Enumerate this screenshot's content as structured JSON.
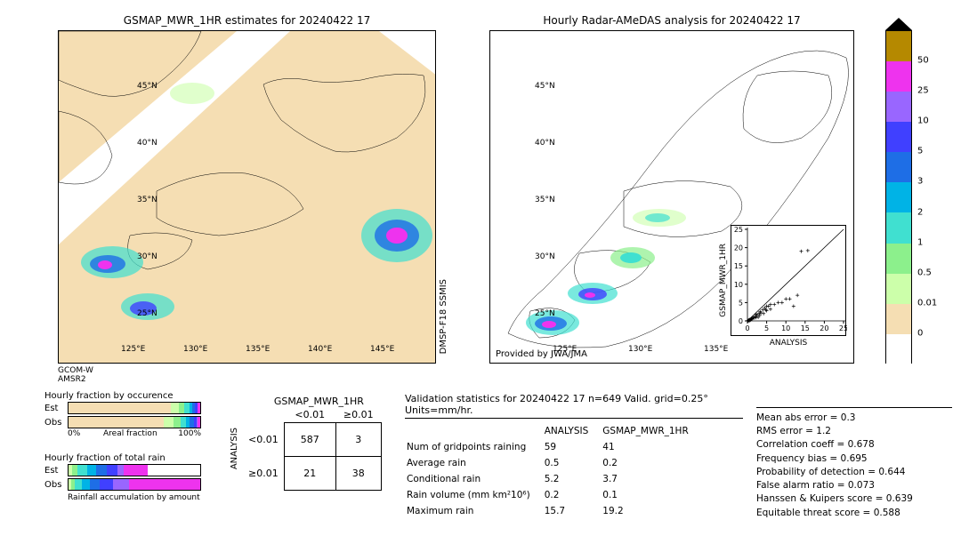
{
  "date": "20240422 17",
  "left_map": {
    "title": "GSMAP_MWR_1HR estimates for 20240422 17",
    "lon_ticks": [
      "125°E",
      "130°E",
      "135°E",
      "140°E",
      "145°E"
    ],
    "lat_ticks": [
      "25°N",
      "30°N",
      "35°N",
      "40°N",
      "45°N"
    ],
    "footer": "GCOM-W\nAMSR2",
    "swath_label": "DMSP-F18\nSSMIS"
  },
  "right_map": {
    "title": "Hourly Radar-AMeDAS analysis for 20240422 17",
    "lon_ticks": [
      "125°E",
      "130°E",
      "135°E"
    ],
    "lat_ticks": [
      "25°N",
      "30°N",
      "35°N",
      "40°N",
      "45°N"
    ],
    "provider": "Provided by JWA/JMA"
  },
  "scatter": {
    "xlabel": "ANALYSIS",
    "ylabel": "GSMAP_MWR_1HR",
    "xlim": [
      0,
      25
    ],
    "ylim": [
      0,
      25
    ],
    "ticks": [
      0,
      5,
      10,
      15,
      20,
      25
    ],
    "points": [
      [
        0.2,
        0.1
      ],
      [
        0.3,
        0.2
      ],
      [
        0.5,
        0.3
      ],
      [
        1,
        0.5
      ],
      [
        1.2,
        0.6
      ],
      [
        1.5,
        1
      ],
      [
        2,
        1.2
      ],
      [
        2.5,
        1.5
      ],
      [
        3,
        2
      ],
      [
        3.5,
        2.2
      ],
      [
        4,
        3
      ],
      [
        4.5,
        3.5
      ],
      [
        5,
        2.8
      ],
      [
        5.5,
        4
      ],
      [
        6,
        3.2
      ],
      [
        7,
        4.5
      ],
      [
        8,
        5
      ],
      [
        9,
        5
      ],
      [
        10,
        6
      ],
      [
        11,
        6
      ],
      [
        12,
        4
      ],
      [
        13,
        7
      ],
      [
        14,
        19
      ],
      [
        15.7,
        19.2
      ],
      [
        5,
        4
      ],
      [
        6,
        4.5
      ],
      [
        0.8,
        0.2
      ],
      [
        1.8,
        0.8
      ],
      [
        2.2,
        0.9
      ],
      [
        3.2,
        1.5
      ],
      [
        4.2,
        2
      ],
      [
        0.4,
        0.1
      ],
      [
        0.6,
        0.1
      ],
      [
        0.1,
        0
      ],
      [
        0.7,
        0.4
      ],
      [
        1.1,
        0.5
      ],
      [
        1.4,
        0.7
      ],
      [
        2.3,
        1.8
      ],
      [
        2.8,
        1
      ],
      [
        3.3,
        2.5
      ],
      [
        4.8,
        3
      ]
    ]
  },
  "colorbar": {
    "ticks": [
      "0",
      "0.01",
      "0.5",
      "1",
      "2",
      "3",
      "5",
      "10",
      "25",
      "50"
    ],
    "colors": [
      "#ffffff",
      "#f5deb3",
      "#ccffaa",
      "#8cf08c",
      "#40e0d0",
      "#00b3e6",
      "#1e6ee6",
      "#4040ff",
      "#9966ff",
      "#ee33ee",
      "#b58900"
    ],
    "overflow_color": "#000000"
  },
  "fraction_occurrence": {
    "title": "Hourly fraction by occurence",
    "rows": [
      "Est",
      "Obs"
    ],
    "axis_left": "0%",
    "axis_right": "100%",
    "axis_label": "Areal fraction",
    "est_segments": [
      {
        "color": "#f5deb3",
        "w": 0.78
      },
      {
        "color": "#ccffaa",
        "w": 0.06
      },
      {
        "color": "#8cf08c",
        "w": 0.04
      },
      {
        "color": "#40e0d0",
        "w": 0.04
      },
      {
        "color": "#00b3e6",
        "w": 0.02
      },
      {
        "color": "#1e6ee6",
        "w": 0.02
      },
      {
        "color": "#4040ff",
        "w": 0.02
      },
      {
        "color": "#ee33ee",
        "w": 0.02
      }
    ],
    "obs_segments": [
      {
        "color": "#f5deb3",
        "w": 0.72
      },
      {
        "color": "#ccffaa",
        "w": 0.08
      },
      {
        "color": "#8cf08c",
        "w": 0.05
      },
      {
        "color": "#40e0d0",
        "w": 0.04
      },
      {
        "color": "#00b3e6",
        "w": 0.03
      },
      {
        "color": "#1e6ee6",
        "w": 0.03
      },
      {
        "color": "#4040ff",
        "w": 0.02
      },
      {
        "color": "#9966ff",
        "w": 0.01
      },
      {
        "color": "#ee33ee",
        "w": 0.02
      }
    ]
  },
  "fraction_total": {
    "title": "Hourly fraction of total rain",
    "rows": [
      "Est",
      "Obs"
    ],
    "footer": "Rainfall accumulation by amount",
    "est_segments": [
      {
        "color": "#ccffaa",
        "w": 0.03
      },
      {
        "color": "#8cf08c",
        "w": 0.04
      },
      {
        "color": "#40e0d0",
        "w": 0.07
      },
      {
        "color": "#00b3e6",
        "w": 0.07
      },
      {
        "color": "#1e6ee6",
        "w": 0.08
      },
      {
        "color": "#4040ff",
        "w": 0.08
      },
      {
        "color": "#9966ff",
        "w": 0.05
      },
      {
        "color": "#ee33ee",
        "w": 0.18
      },
      {
        "color": "#ffffff",
        "w": 0.4
      }
    ],
    "obs_segments": [
      {
        "color": "#ccffaa",
        "w": 0.02
      },
      {
        "color": "#8cf08c",
        "w": 0.03
      },
      {
        "color": "#40e0d0",
        "w": 0.05
      },
      {
        "color": "#00b3e6",
        "w": 0.06
      },
      {
        "color": "#1e6ee6",
        "w": 0.08
      },
      {
        "color": "#4040ff",
        "w": 0.1
      },
      {
        "color": "#9966ff",
        "w": 0.12
      },
      {
        "color": "#ee33ee",
        "w": 0.54
      }
    ]
  },
  "contingency": {
    "top_title": "GSMAP_MWR_1HR",
    "cols": [
      "<0.01",
      "≥0.01"
    ],
    "side_title": "ANALYSIS",
    "rows": [
      "<0.01",
      "≥0.01"
    ],
    "cells": [
      [
        587,
        3
      ],
      [
        21,
        38
      ]
    ]
  },
  "validation": {
    "title": "Validation statistics for 20240422 17  n=649 Valid. grid=0.25° Units=mm/hr.",
    "columns": [
      "",
      "ANALYSIS",
      "GSMAP_MWR_1HR"
    ],
    "rows": [
      {
        "label": "Num of gridpoints raining",
        "analysis": "59",
        "model": "41"
      },
      {
        "label": "Average rain",
        "analysis": "0.5",
        "model": "0.2"
      },
      {
        "label": "Conditional rain",
        "analysis": "5.2",
        "model": "3.7"
      },
      {
        "label": "Rain volume (mm km²10⁶)",
        "analysis": "0.2",
        "model": "0.1"
      },
      {
        "label": "Maximum rain",
        "analysis": "15.7",
        "model": "19.2"
      }
    ],
    "scores": [
      {
        "label": "Mean abs error =",
        "value": "   0.3"
      },
      {
        "label": "RMS error =",
        "value": "   1.2"
      },
      {
        "label": "Correlation coeff  =",
        "value": "  0.678"
      },
      {
        "label": "Frequency bias  =",
        "value": "  0.695"
      },
      {
        "label": "Probability of detection  =",
        "value": "  0.644"
      },
      {
        "label": "False alarm ratio  =",
        "value": "  0.073"
      },
      {
        "label": "Hanssen & Kuipers score  =",
        "value": "  0.639"
      },
      {
        "label": "Equitable threat score  =",
        "value": "  0.588"
      }
    ]
  },
  "style": {
    "bg": "#ffffff",
    "text_color": "#000000",
    "land_fill": "#f5deb3",
    "ocean_fill": "#ffffff",
    "font_size_title": 12,
    "font_size_axis": 10,
    "font_size_body": 11
  }
}
